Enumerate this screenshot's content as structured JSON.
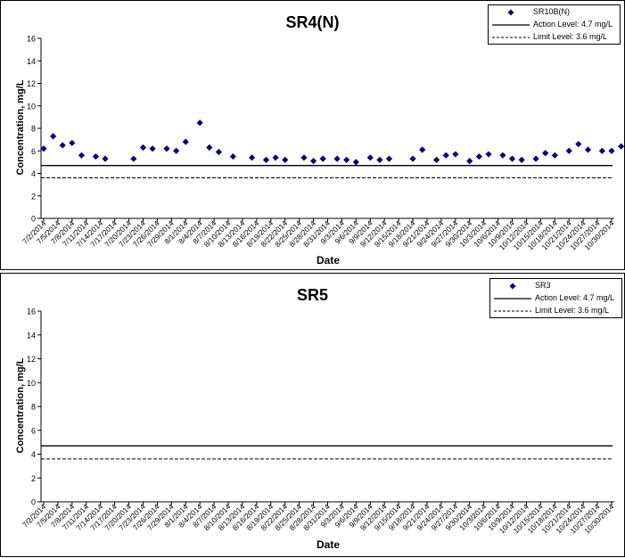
{
  "chart_data": [
    {
      "type": "scatter",
      "title": "SR4(N)",
      "xlabel": "Date",
      "ylabel": "Concentration, mg/L",
      "ylim": [
        0,
        16
      ],
      "yticks": [
        "0",
        "2",
        "4",
        "6",
        "8",
        "10",
        "12",
        "14",
        "16"
      ],
      "x_ticks": [
        "7/2/2014",
        "7/5/2014",
        "7/8/2014",
        "7/11/2014",
        "7/14/2014",
        "7/17/2014",
        "7/20/2014",
        "7/23/2014",
        "7/26/2014",
        "7/29/2014",
        "8/1/2014",
        "8/4/2014",
        "8/7/2014",
        "8/10/2014",
        "8/13/2014",
        "8/16/2014",
        "8/19/2014",
        "8/22/2014",
        "8/25/2014",
        "8/28/2014",
        "8/31/2014",
        "9/3/2014",
        "9/6/2014",
        "9/9/2014",
        "9/12/2014",
        "9/15/2014",
        "9/18/2014",
        "9/21/2014",
        "9/24/2014",
        "9/27/2014",
        "9/30/2014",
        "10/3/2014",
        "10/6/2014",
        "10/9/2014",
        "10/12/2014",
        "10/15/2014",
        "10/18/2014",
        "10/21/2014",
        "10/24/2014",
        "10/27/2014",
        "10/30/2014"
      ],
      "legend": [
        {
          "label": "SR10B(N)",
          "kind": "marker"
        },
        {
          "label": "Action Level: 4.7 mg/L",
          "kind": "solid"
        },
        {
          "label": "Limit Level: 3.6 mg/L",
          "kind": "dashed"
        }
      ],
      "legend_position": "top-right",
      "reference_lines": [
        {
          "name": "Action Level",
          "value": 4.7,
          "style": "solid"
        },
        {
          "name": "Limit Level",
          "value": 3.6,
          "style": "dashed"
        }
      ],
      "series": [
        {
          "name": "SR10B(N)",
          "color": "#000080",
          "marker": "diamond",
          "points": [
            {
              "x": "7/2/2014",
              "y": 6.2
            },
            {
              "x": "7/4/2014",
              "y": 7.3
            },
            {
              "x": "7/6/2014",
              "y": 6.5
            },
            {
              "x": "7/8/2014",
              "y": 6.7
            },
            {
              "x": "7/10/2014",
              "y": 5.6
            },
            {
              "x": "7/13/2014",
              "y": 5.5
            },
            {
              "x": "7/15/2014",
              "y": 5.3
            },
            {
              "x": "7/21/2014",
              "y": 5.3
            },
            {
              "x": "7/23/2014",
              "y": 6.3
            },
            {
              "x": "7/25/2014",
              "y": 6.2
            },
            {
              "x": "7/28/2014",
              "y": 6.2
            },
            {
              "x": "7/30/2014",
              "y": 6.0
            },
            {
              "x": "8/1/2014",
              "y": 6.8
            },
            {
              "x": "8/4/2014",
              "y": 8.5
            },
            {
              "x": "8/6/2014",
              "y": 6.3
            },
            {
              "x": "8/8/2014",
              "y": 5.9
            },
            {
              "x": "8/11/2014",
              "y": 5.5
            },
            {
              "x": "8/15/2014",
              "y": 5.4
            },
            {
              "x": "8/18/2014",
              "y": 5.2
            },
            {
              "x": "8/20/2014",
              "y": 5.4
            },
            {
              "x": "8/22/2014",
              "y": 5.2
            },
            {
              "x": "8/26/2014",
              "y": 5.4
            },
            {
              "x": "8/28/2014",
              "y": 5.1
            },
            {
              "x": "8/30/2014",
              "y": 5.3
            },
            {
              "x": "9/2/2014",
              "y": 5.3
            },
            {
              "x": "9/4/2014",
              "y": 5.2
            },
            {
              "x": "9/6/2014",
              "y": 5.0
            },
            {
              "x": "9/9/2014",
              "y": 5.4
            },
            {
              "x": "9/11/2014",
              "y": 5.2
            },
            {
              "x": "9/13/2014",
              "y": 5.3
            },
            {
              "x": "9/18/2014",
              "y": 5.3
            },
            {
              "x": "9/20/2014",
              "y": 6.1
            },
            {
              "x": "9/23/2014",
              "y": 5.2
            },
            {
              "x": "9/25/2014",
              "y": 5.6
            },
            {
              "x": "9/27/2014",
              "y": 5.7
            },
            {
              "x": "9/30/2014",
              "y": 5.1
            },
            {
              "x": "10/2/2014",
              "y": 5.5
            },
            {
              "x": "10/4/2014",
              "y": 5.7
            },
            {
              "x": "10/7/2014",
              "y": 5.6
            },
            {
              "x": "10/9/2014",
              "y": 5.3
            },
            {
              "x": "10/11/2014",
              "y": 5.2
            },
            {
              "x": "10/14/2014",
              "y": 5.3
            },
            {
              "x": "10/16/2014",
              "y": 5.8
            },
            {
              "x": "10/18/2014",
              "y": 5.6
            },
            {
              "x": "10/21/2014",
              "y": 6.0
            },
            {
              "x": "10/23/2014",
              "y": 6.6
            },
            {
              "x": "10/25/2014",
              "y": 6.1
            },
            {
              "x": "10/28/2014",
              "y": 6.0
            },
            {
              "x": "10/30/2014",
              "y": 6.0
            },
            {
              "x": "11/1/2014",
              "y": 6.4
            }
          ]
        }
      ]
    },
    {
      "type": "scatter",
      "title": "SR5",
      "xlabel": "Date",
      "ylabel": "Concentration, mg/L",
      "ylim": [
        0,
        16
      ],
      "yticks": [
        "0",
        "2",
        "4",
        "6",
        "8",
        "10",
        "12",
        "14",
        "16"
      ],
      "x_ticks": [
        "7/2/2014",
        "7/5/2014",
        "7/8/2014",
        "7/11/2014",
        "7/14/2014",
        "7/17/2014",
        "7/20/2014",
        "7/23/2014",
        "7/26/2014",
        "7/29/2014",
        "8/1/2014",
        "8/4/2014",
        "8/7/2014",
        "8/10/2014",
        "8/13/2014",
        "8/16/2014",
        "8/19/2014",
        "8/22/2014",
        "8/25/2014",
        "8/28/2014",
        "8/31/2014",
        "9/3/2014",
        "9/6/2014",
        "9/9/2014",
        "9/12/2014",
        "9/15/2014",
        "9/18/2014",
        "9/21/2014",
        "9/24/2014",
        "9/27/2014",
        "9/30/2014",
        "10/3/2014",
        "10/6/2014",
        "10/9/2014",
        "10/12/2014",
        "10/15/2014",
        "10/18/2014",
        "10/21/2014",
        "10/24/2014",
        "10/27/2014",
        "10/30/2014"
      ],
      "legend": [
        {
          "label": "SR3",
          "kind": "marker"
        },
        {
          "label": "Action Level: 4.7 mg/L",
          "kind": "solid"
        },
        {
          "label": "Limit Level: 3.6 mg/L",
          "kind": "dashed"
        }
      ],
      "legend_position": "top-right",
      "reference_lines": [
        {
          "name": "Action Level",
          "value": 4.7,
          "style": "solid"
        },
        {
          "name": "Limit Level",
          "value": 3.6,
          "style": "dashed"
        }
      ],
      "series": [
        {
          "name": "SR3",
          "color": "#000080",
          "marker": "diamond",
          "points": []
        }
      ]
    }
  ]
}
